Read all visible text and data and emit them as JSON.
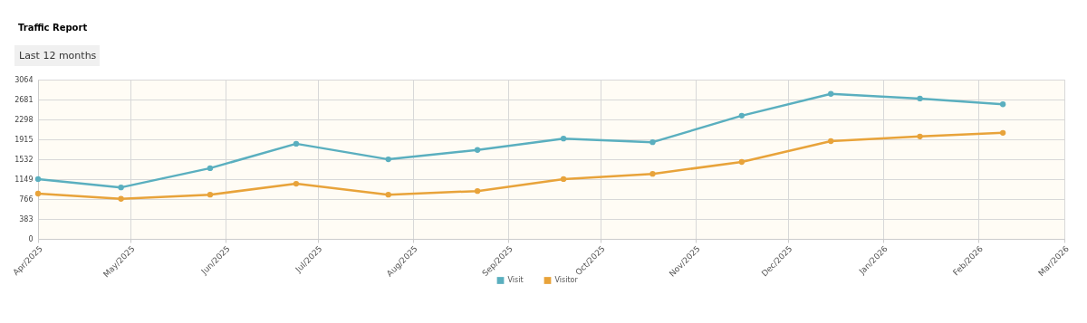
{
  "chart_data": {
    "type": "line",
    "title": "Traffic Report",
    "annotations": [
      "Last 12 months"
    ],
    "x": [
      "2025-04-01",
      "2025-04-28",
      "2025-05-27",
      "2025-06-24",
      "2025-07-24",
      "2025-08-22",
      "2025-09-19",
      "2025-10-18",
      "2025-11-16",
      "2025-12-15",
      "2026-01-13",
      "2026-02-09"
    ],
    "series": [
      {
        "name": "Visit",
        "color": "#5aafbf",
        "values": [
          1150,
          990,
          1360,
          1830,
          1530,
          1710,
          1930,
          1860,
          2370,
          2790,
          2700,
          2590
        ]
      },
      {
        "name": "Visitor",
        "color": "#e8a33a",
        "values": [
          870,
          770,
          850,
          1060,
          850,
          920,
          1150,
          1250,
          1480,
          1880,
          1970,
          2040
        ]
      }
    ],
    "xlim": [
      "2025-04-01",
      "2026-03-01"
    ],
    "xticks": [
      {
        "value": "2025-04-01",
        "label": "Apr/2025"
      },
      {
        "value": "2025-05-01",
        "label": "May/2025"
      },
      {
        "value": "2025-06-01",
        "label": "Jun/2025"
      },
      {
        "value": "2025-07-01",
        "label": "Jul/2025"
      },
      {
        "value": "2025-08-01",
        "label": "Aug/2025"
      },
      {
        "value": "2025-09-01",
        "label": "Sep/2025"
      },
      {
        "value": "2025-10-01",
        "label": "Oct/2025"
      },
      {
        "value": "2025-11-01",
        "label": "Nov/2025"
      },
      {
        "value": "2025-12-01",
        "label": "Dec/2025"
      },
      {
        "value": "2026-01-01",
        "label": "Jan/2026"
      },
      {
        "value": "2026-02-01",
        "label": "Feb/2026"
      },
      {
        "value": "2026-03-01",
        "label": "Mar/2026"
      }
    ],
    "ylim": [
      0,
      3064
    ],
    "yticks": [
      0,
      383,
      766,
      1149,
      1532,
      1915,
      2298,
      2681,
      3064
    ],
    "grid": true,
    "legend": "bottom",
    "marker": "circle",
    "line_style": "solid"
  }
}
